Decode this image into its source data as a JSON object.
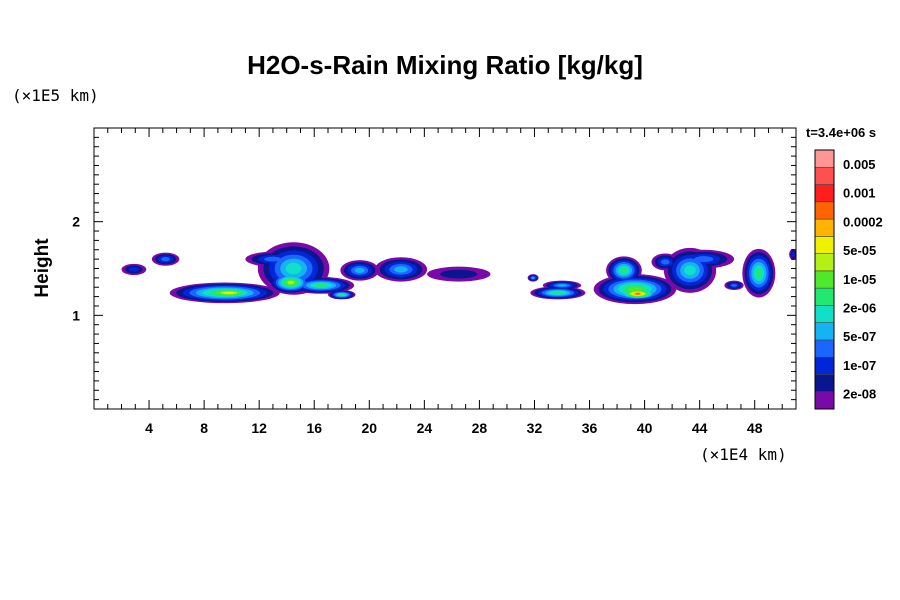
{
  "chart_data": {
    "type": "heatmap",
    "title": "H2O-s-Rain Mixing Ratio [kg/kg]",
    "ylabel": "Height",
    "x_unit": "(×1E4 km)",
    "y_unit": "(×1E5 km)",
    "time_label": "t=3.4e+06 s",
    "xlim": [
      0,
      51
    ],
    "ylim": [
      0,
      3
    ],
    "x_ticks": [
      "4",
      "8",
      "12",
      "16",
      "20",
      "24",
      "28",
      "32",
      "36",
      "40",
      "44",
      "48"
    ],
    "x_tick_values": [
      4,
      8,
      12,
      16,
      20,
      24,
      28,
      32,
      36,
      40,
      44,
      48
    ],
    "y_ticks": [
      "1",
      "2"
    ],
    "y_tick_values": [
      1,
      2
    ],
    "colorbar": {
      "labels": [
        "0.005",
        "0.001",
        "0.0002",
        "5e-05",
        "1e-05",
        "2e-06",
        "5e-07",
        "1e-07",
        "2e-08"
      ],
      "colors": [
        "#7a0aa8",
        "#0a1590",
        "#0026d8",
        "#1a66ff",
        "#14b4f4",
        "#10e0c8",
        "#20e870",
        "#50e82a",
        "#b4f014",
        "#f0f000",
        "#ffb400",
        "#ff6400",
        "#ff1e1e",
        "#ff5050",
        "#ff9696"
      ]
    },
    "clouds": [
      {
        "x": 2.9,
        "y": 1.49,
        "rx": 0.9,
        "ry": 0.06,
        "level": 2
      },
      {
        "x": 5.2,
        "y": 1.6,
        "rx": 1.0,
        "ry": 0.07,
        "level": 3
      },
      {
        "x": 9.5,
        "y": 1.24,
        "rx": 4.0,
        "ry": 0.11,
        "level": 7
      },
      {
        "x": 9.8,
        "y": 1.24,
        "rx": 2.6,
        "ry": 0.07,
        "level": 9
      },
      {
        "x": 14.5,
        "y": 1.5,
        "rx": 2.6,
        "ry": 0.28,
        "level": 5
      },
      {
        "x": 14.3,
        "y": 1.35,
        "rx": 1.6,
        "ry": 0.12,
        "level": 8
      },
      {
        "x": 16.5,
        "y": 1.32,
        "rx": 2.4,
        "ry": 0.09,
        "level": 6
      },
      {
        "x": 13.0,
        "y": 1.6,
        "rx": 2.0,
        "ry": 0.08,
        "level": 3
      },
      {
        "x": 18.0,
        "y": 1.22,
        "rx": 1.0,
        "ry": 0.05,
        "level": 6
      },
      {
        "x": 19.3,
        "y": 1.48,
        "rx": 1.4,
        "ry": 0.11,
        "level": 4
      },
      {
        "x": 22.3,
        "y": 1.49,
        "rx": 1.9,
        "ry": 0.13,
        "level": 4
      },
      {
        "x": 26.5,
        "y": 1.44,
        "rx": 2.3,
        "ry": 0.08,
        "level": 1
      },
      {
        "x": 33.7,
        "y": 1.24,
        "rx": 2.0,
        "ry": 0.07,
        "level": 6
      },
      {
        "x": 34.0,
        "y": 1.32,
        "rx": 1.4,
        "ry": 0.05,
        "level": 4
      },
      {
        "x": 31.9,
        "y": 1.4,
        "rx": 0.4,
        "ry": 0.04,
        "level": 4
      },
      {
        "x": 39.3,
        "y": 1.28,
        "rx": 3.0,
        "ry": 0.16,
        "level": 7
      },
      {
        "x": 39.5,
        "y": 1.23,
        "rx": 1.6,
        "ry": 0.07,
        "level": 11
      },
      {
        "x": 38.5,
        "y": 1.48,
        "rx": 1.3,
        "ry": 0.15,
        "level": 6
      },
      {
        "x": 43.3,
        "y": 1.48,
        "rx": 1.9,
        "ry": 0.24,
        "level": 5
      },
      {
        "x": 44.3,
        "y": 1.6,
        "rx": 2.2,
        "ry": 0.1,
        "level": 3
      },
      {
        "x": 41.5,
        "y": 1.57,
        "rx": 1.0,
        "ry": 0.09,
        "level": 3
      },
      {
        "x": 48.3,
        "y": 1.45,
        "rx": 1.2,
        "ry": 0.26,
        "level": 6
      },
      {
        "x": 46.5,
        "y": 1.32,
        "rx": 0.7,
        "ry": 0.05,
        "level": 3
      },
      {
        "x": 50.8,
        "y": 1.65,
        "rx": 0.3,
        "ry": 0.06,
        "level": 2
      }
    ]
  }
}
